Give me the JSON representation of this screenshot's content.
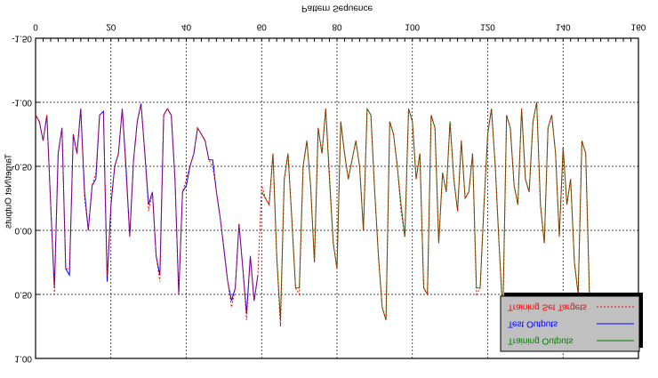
{
  "chart_data": {
    "type": "line",
    "x_label": "Pattern Sequence",
    "y_label": "Target/Net Outputs",
    "xlim": [
      0,
      160
    ],
    "xticks": [
      0,
      20,
      40,
      60,
      80,
      100,
      120,
      140,
      160
    ],
    "ylim": [
      -1.5,
      1
    ],
    "yticks": [
      {
        "value": -1.5,
        "label": "-1.50"
      },
      {
        "value": -1,
        "label": "-1.00"
      },
      {
        "value": -0.5,
        "label": "-0.50"
      },
      {
        "value": 0,
        "label": "0.00"
      },
      {
        "value": 0.5,
        "label": "0.50"
      },
      {
        "value": 1,
        "label": "1.00"
      }
    ],
    "grid": true,
    "legend": "upper right",
    "x": [
      0,
      1,
      2,
      3,
      4,
      5,
      6,
      7,
      8,
      9,
      10,
      11,
      12,
      13,
      14,
      15,
      16,
      17,
      18,
      19,
      20,
      21,
      22,
      23,
      24,
      25,
      26,
      27,
      28,
      29,
      30,
      31,
      32,
      33,
      34,
      35,
      36,
      37,
      38,
      39,
      40,
      41,
      42,
      43,
      44,
      45,
      46,
      47,
      48,
      49,
      50,
      51,
      52,
      53,
      54,
      55,
      56,
      57,
      58,
      59,
      60,
      61,
      62,
      63,
      64,
      65,
      66,
      67,
      68,
      69,
      70,
      71,
      72,
      73,
      74,
      75,
      76,
      77,
      78,
      79,
      80,
      81,
      82,
      83,
      84,
      85,
      86,
      87,
      88,
      89,
      90,
      91,
      92,
      93,
      94,
      95,
      96,
      97,
      98,
      99,
      100,
      101,
      102,
      103,
      104,
      105,
      106,
      107,
      108,
      109,
      110,
      111,
      112,
      113,
      114,
      115,
      116,
      117,
      118,
      119,
      120,
      121,
      122,
      123,
      124,
      125,
      126,
      127,
      128,
      129,
      130,
      131,
      132,
      133,
      134,
      135,
      136,
      137,
      138,
      139,
      140,
      141,
      142,
      143,
      144,
      145,
      146,
      147
    ],
    "series": [
      {
        "name": "Training Outputs",
        "color": "#008000",
        "dash": false,
        "values": [
          null,
          null,
          null,
          null,
          null,
          null,
          null,
          null,
          null,
          null,
          null,
          null,
          null,
          null,
          null,
          null,
          null,
          null,
          null,
          null,
          null,
          null,
          null,
          null,
          null,
          null,
          null,
          null,
          null,
          null,
          null,
          null,
          null,
          null,
          null,
          null,
          null,
          null,
          null,
          null,
          null,
          null,
          null,
          null,
          null,
          null,
          null,
          null,
          null,
          null,
          null,
          null,
          null,
          null,
          null,
          null,
          null,
          null,
          null,
          null,
          -0.3,
          -0.25,
          -0.2,
          -0.6,
          0.2,
          0.7,
          -0.4,
          -0.6,
          -0.1,
          0.45,
          0.45,
          -0.5,
          -0.7,
          -0.35,
          0.25,
          -0.8,
          -0.6,
          -0.95,
          -0.4,
          0.1,
          0.3,
          -0.85,
          -0.6,
          -0.4,
          -0.55,
          -0.7,
          -0.5,
          0.0,
          -0.95,
          -0.9,
          -0.3,
          0.2,
          0.6,
          0.7,
          -0.85,
          -0.75,
          -0.5,
          -0.2,
          0.05,
          -0.95,
          -0.85,
          -0.4,
          -0.6,
          0.45,
          0.5,
          -0.9,
          -0.8,
          0.1,
          -0.45,
          -0.3,
          -0.85,
          -0.4,
          -0.15,
          -0.7,
          -0.25,
          -0.3,
          -0.6,
          0.45,
          0.45,
          -0.2,
          -0.75,
          -0.95,
          -0.5,
          0.1,
          0.65,
          -0.9,
          -0.8,
          -0.35,
          -0.2,
          -0.95,
          -0.4,
          -0.3,
          -0.85,
          -1.0,
          -0.2,
          0.1,
          -0.8,
          -0.9,
          -0.6,
          0.05,
          -0.65,
          -0.2,
          -0.4,
          0.25,
          0.5,
          -0.7,
          -0.6,
          0.5
        ]
      },
      {
        "name": "Test Outputs",
        "color": "#0000ff",
        "dash": false,
        "values": [
          -0.9,
          -0.85,
          -0.7,
          -0.9,
          -0.2,
          0.45,
          -0.6,
          -0.8,
          0.3,
          0.35,
          -0.75,
          -0.6,
          -0.95,
          -0.3,
          0.0,
          -0.35,
          -0.4,
          -0.9,
          -0.93,
          0.4,
          -0.2,
          -0.5,
          -0.6,
          -0.95,
          -0.5,
          0.05,
          -0.55,
          -0.85,
          -0.99,
          -0.6,
          -0.2,
          -0.3,
          0.2,
          0.35,
          -0.9,
          -0.95,
          -0.9,
          -0.4,
          0.5,
          -0.3,
          -0.35,
          -0.5,
          -0.6,
          -0.8,
          -0.75,
          -0.7,
          -0.55,
          -0.55,
          -0.3,
          -0.1,
          0.15,
          0.4,
          0.55,
          0.45,
          -0.05,
          0.3,
          0.65,
          0.2,
          0.55,
          0.35,
          null,
          null,
          null,
          null,
          null,
          null,
          null,
          null,
          null,
          null,
          null,
          null,
          null,
          null,
          null,
          null,
          null,
          null,
          null,
          null,
          null,
          null,
          null,
          null,
          null,
          null,
          null,
          null,
          null,
          null,
          null,
          null,
          null,
          null,
          null,
          null,
          null,
          null,
          null,
          null,
          null,
          null,
          null,
          null,
          null,
          null,
          null,
          null,
          null,
          null,
          null,
          null,
          null,
          null,
          null,
          null,
          null,
          null,
          null,
          null,
          null,
          null,
          null,
          null,
          null,
          null,
          null,
          null,
          null,
          null,
          null,
          null,
          null,
          null,
          null,
          null,
          null,
          null,
          null,
          null,
          null,
          null,
          null,
          null,
          null,
          null,
          null,
          null
        ]
      },
      {
        "name": "Training Set Targets",
        "color": "#ff0000",
        "dash": true,
        "values": [
          -0.9,
          -0.85,
          -0.7,
          -0.9,
          -0.2,
          0.5,
          -0.6,
          -0.8,
          0.3,
          0.3,
          -0.75,
          -0.6,
          -0.95,
          -0.25,
          0.0,
          -0.35,
          -0.45,
          -0.9,
          -0.93,
          0.35,
          -0.2,
          -0.5,
          -0.6,
          -0.95,
          -0.45,
          0.05,
          -0.55,
          -0.85,
          -0.99,
          -0.6,
          -0.15,
          -0.3,
          0.2,
          0.4,
          -0.9,
          -0.95,
          -0.9,
          -0.4,
          0.5,
          -0.3,
          -0.4,
          -0.5,
          -0.6,
          -0.8,
          -0.75,
          -0.7,
          -0.55,
          -0.5,
          -0.3,
          -0.1,
          0.15,
          0.4,
          0.6,
          0.45,
          -0.05,
          0.3,
          0.7,
          0.2,
          0.55,
          0.35,
          -0.35,
          -0.25,
          -0.2,
          -0.6,
          0.2,
          0.75,
          -0.4,
          -0.6,
          -0.1,
          0.45,
          0.5,
          -0.5,
          -0.7,
          -0.35,
          0.25,
          -0.8,
          -0.6,
          -0.95,
          -0.45,
          0.1,
          0.3,
          -0.85,
          -0.6,
          -0.4,
          -0.55,
          -0.7,
          -0.5,
          0.0,
          -0.95,
          -0.9,
          -0.3,
          0.2,
          0.6,
          0.7,
          -0.85,
          -0.75,
          -0.5,
          -0.15,
          0.05,
          -0.95,
          -0.85,
          -0.4,
          -0.6,
          0.45,
          0.5,
          -0.9,
          -0.8,
          0.1,
          -0.45,
          -0.3,
          -0.85,
          -0.4,
          -0.15,
          -0.7,
          -0.25,
          -0.3,
          -0.6,
          0.5,
          0.45,
          -0.2,
          -0.75,
          -0.95,
          -0.5,
          0.1,
          0.7,
          -0.9,
          -0.8,
          -0.35,
          -0.2,
          -0.95,
          -0.4,
          -0.3,
          -0.85,
          -1.0,
          -0.2,
          0.1,
          -0.8,
          -0.9,
          -0.6,
          0.05,
          -0.65,
          -0.2,
          -0.4,
          0.25,
          0.5,
          -0.7,
          -0.6,
          0.5
        ]
      }
    ]
  }
}
